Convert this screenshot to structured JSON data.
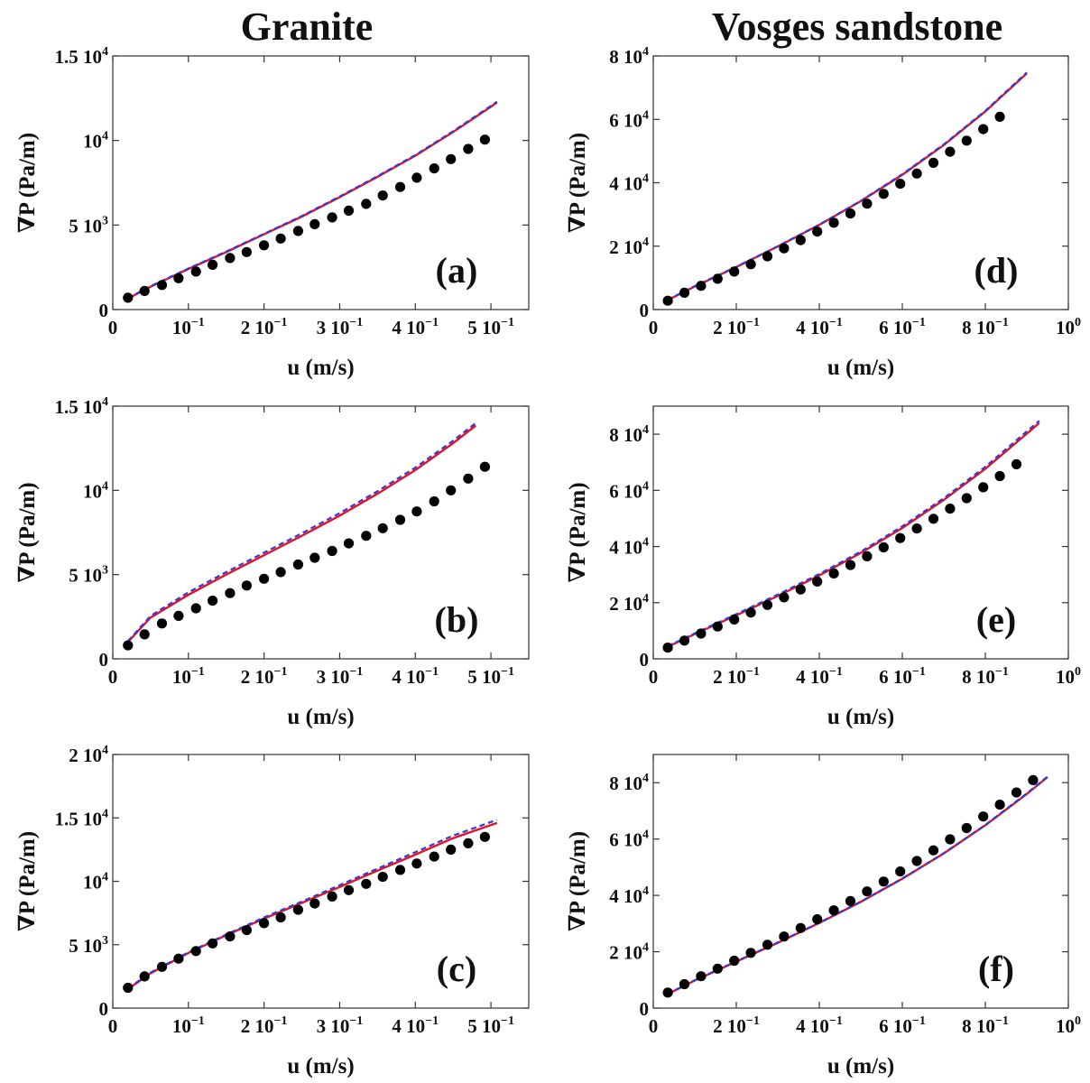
{
  "columns": [
    {
      "title": "Granite"
    },
    {
      "title": "Vosges sandstone"
    }
  ],
  "colors": {
    "solid": "#e8102a",
    "dashed": "#2a3fd6",
    "points": "#000000"
  },
  "chart_data": [
    {
      "type": "scatter",
      "panel_label": "(a)",
      "column": 0,
      "row": 0,
      "xlabel": "u (m/s)",
      "ylabel": "∇P (Pa/m)",
      "xlim": [
        0,
        0.55
      ],
      "ylim": [
        0,
        15000
      ],
      "xticks": [
        {
          "v": 0,
          "m": "0",
          "e": ""
        },
        {
          "v": 0.1,
          "m": "10",
          "e": "−1"
        },
        {
          "v": 0.2,
          "m": "2 10",
          "e": "−1"
        },
        {
          "v": 0.3,
          "m": "3 10",
          "e": "−1"
        },
        {
          "v": 0.4,
          "m": "4 10",
          "e": "−1"
        },
        {
          "v": 0.5,
          "m": "5 10",
          "e": "−1"
        }
      ],
      "yticks": [
        {
          "v": 0,
          "m": "0",
          "e": ""
        },
        {
          "v": 5000,
          "m": "5 10",
          "e": "3"
        },
        {
          "v": 10000,
          "m": "10",
          "e": "4"
        },
        {
          "v": 15000,
          "m": "1.5 10",
          "e": "4"
        }
      ],
      "points": {
        "x": [
          0.02,
          0.042,
          0.065,
          0.087,
          0.11,
          0.132,
          0.155,
          0.177,
          0.2,
          0.222,
          0.245,
          0.267,
          0.29,
          0.312,
          0.335,
          0.357,
          0.38,
          0.402,
          0.425,
          0.447,
          0.47,
          0.492
        ],
        "y": [
          700,
          1100,
          1450,
          1850,
          2250,
          2650,
          3050,
          3400,
          3800,
          4200,
          4650,
          5050,
          5450,
          5850,
          6250,
          6750,
          7250,
          7800,
          8350,
          8900,
          9500,
          10050
        ]
      },
      "solid_line": {
        "x": [
          0.02,
          0.05,
          0.1,
          0.15,
          0.2,
          0.25,
          0.3,
          0.35,
          0.4,
          0.45,
          0.5,
          0.508
        ],
        "y": [
          650,
          1350,
          2400,
          3400,
          4450,
          5500,
          6650,
          7850,
          9100,
          10500,
          12000,
          12250
        ]
      },
      "dashed_line": {
        "x": [
          0.02,
          0.05,
          0.1,
          0.15,
          0.2,
          0.25,
          0.3,
          0.35,
          0.4,
          0.45,
          0.5,
          0.508
        ],
        "y": [
          680,
          1380,
          2430,
          3430,
          4480,
          5530,
          6690,
          7890,
          9140,
          10550,
          12050,
          12300
        ]
      }
    },
    {
      "type": "scatter",
      "panel_label": "(b)",
      "column": 0,
      "row": 1,
      "xlabel": "u (m/s)",
      "ylabel": "∇P (Pa/m)",
      "xlim": [
        0,
        0.55
      ],
      "ylim": [
        0,
        15000
      ],
      "xticks": [
        {
          "v": 0,
          "m": "0",
          "e": ""
        },
        {
          "v": 0.1,
          "m": "10",
          "e": "−1"
        },
        {
          "v": 0.2,
          "m": "2 10",
          "e": "−1"
        },
        {
          "v": 0.3,
          "m": "3 10",
          "e": "−1"
        },
        {
          "v": 0.4,
          "m": "4 10",
          "e": "−1"
        },
        {
          "v": 0.5,
          "m": "5 10",
          "e": "−1"
        }
      ],
      "yticks": [
        {
          "v": 0,
          "m": "0",
          "e": ""
        },
        {
          "v": 5000,
          "m": "5 10",
          "e": "3"
        },
        {
          "v": 10000,
          "m": "10",
          "e": "4"
        },
        {
          "v": 15000,
          "m": "1.5 10",
          "e": "4"
        }
      ],
      "points": {
        "x": [
          0.02,
          0.042,
          0.065,
          0.087,
          0.11,
          0.132,
          0.155,
          0.177,
          0.2,
          0.222,
          0.245,
          0.267,
          0.29,
          0.312,
          0.335,
          0.357,
          0.38,
          0.402,
          0.425,
          0.447,
          0.47,
          0.492
        ],
        "y": [
          800,
          1450,
          2100,
          2550,
          3000,
          3450,
          3900,
          4350,
          4750,
          5150,
          5600,
          6000,
          6400,
          6850,
          7300,
          7750,
          8250,
          8750,
          9350,
          10000,
          10700,
          11400
        ]
      },
      "solid_line": {
        "x": [
          0.02,
          0.05,
          0.1,
          0.15,
          0.2,
          0.25,
          0.3,
          0.35,
          0.4,
          0.45,
          0.48
        ],
        "y": [
          1000,
          2450,
          3800,
          5000,
          6150,
          7300,
          8500,
          9800,
          11200,
          12800,
          13850
        ]
      },
      "dashed_line": {
        "x": [
          0.02,
          0.05,
          0.1,
          0.15,
          0.2,
          0.25,
          0.3,
          0.35,
          0.4,
          0.45,
          0.48
        ],
        "y": [
          1050,
          2550,
          3950,
          5150,
          6300,
          7450,
          8650,
          9950,
          11350,
          12950,
          14000
        ]
      }
    },
    {
      "type": "scatter",
      "panel_label": "(c)",
      "column": 0,
      "row": 2,
      "xlabel": "u (m/s)",
      "ylabel": "∇P (Pa/m)",
      "xlim": [
        0,
        0.55
      ],
      "ylim": [
        0,
        20000
      ],
      "xticks": [
        {
          "v": 0,
          "m": "0",
          "e": ""
        },
        {
          "v": 0.1,
          "m": "10",
          "e": "−1"
        },
        {
          "v": 0.2,
          "m": "2 10",
          "e": "−1"
        },
        {
          "v": 0.3,
          "m": "3 10",
          "e": "−1"
        },
        {
          "v": 0.4,
          "m": "4 10",
          "e": "−1"
        },
        {
          "v": 0.5,
          "m": "5 10",
          "e": "−1"
        }
      ],
      "yticks": [
        {
          "v": 0,
          "m": "0",
          "e": ""
        },
        {
          "v": 5000,
          "m": "5 10",
          "e": "3"
        },
        {
          "v": 10000,
          "m": "10",
          "e": "4"
        },
        {
          "v": 15000,
          "m": "1.5 10",
          "e": "4"
        },
        {
          "v": 20000,
          "m": "2 10",
          "e": "4"
        }
      ],
      "points": {
        "x": [
          0.02,
          0.042,
          0.065,
          0.087,
          0.11,
          0.132,
          0.155,
          0.177,
          0.2,
          0.222,
          0.245,
          0.267,
          0.29,
          0.312,
          0.335,
          0.357,
          0.38,
          0.402,
          0.425,
          0.447,
          0.47,
          0.492
        ],
        "y": [
          1600,
          2500,
          3250,
          3900,
          4500,
          5100,
          5650,
          6150,
          6700,
          7150,
          7750,
          8250,
          8800,
          9300,
          9800,
          10350,
          10900,
          11400,
          11950,
          12500,
          13000,
          13500
        ]
      },
      "solid_line": {
        "x": [
          0.02,
          0.05,
          0.1,
          0.15,
          0.2,
          0.25,
          0.3,
          0.35,
          0.4,
          0.45,
          0.508
        ],
        "y": [
          1500,
          2750,
          4350,
          5750,
          7050,
          8300,
          9550,
          10850,
          12100,
          13400,
          14600
        ]
      },
      "dashed_line": {
        "x": [
          0.02,
          0.05,
          0.1,
          0.15,
          0.2,
          0.25,
          0.3,
          0.35,
          0.4,
          0.45,
          0.508
        ],
        "y": [
          1550,
          2800,
          4400,
          5800,
          7150,
          8400,
          9700,
          11000,
          12300,
          13600,
          14850
        ]
      }
    },
    {
      "type": "scatter",
      "panel_label": "(d)",
      "column": 1,
      "row": 0,
      "xlabel": "u (m/s)",
      "ylabel": "∇P (Pa/m)",
      "xlim": [
        0,
        1.0
      ],
      "ylim": [
        0,
        80000
      ],
      "xticks": [
        {
          "v": 0,
          "m": "0",
          "e": ""
        },
        {
          "v": 0.2,
          "m": "2 10",
          "e": "−1"
        },
        {
          "v": 0.4,
          "m": "4 10",
          "e": "−1"
        },
        {
          "v": 0.6,
          "m": "6 10",
          "e": "−1"
        },
        {
          "v": 0.8,
          "m": "8 10",
          "e": "−1"
        },
        {
          "v": 1.0,
          "m": "10",
          "e": "0"
        }
      ],
      "yticks": [
        {
          "v": 0,
          "m": "0",
          "e": ""
        },
        {
          "v": 20000,
          "m": "2 10",
          "e": "4"
        },
        {
          "v": 40000,
          "m": "4 10",
          "e": "4"
        },
        {
          "v": 60000,
          "m": "6 10",
          "e": "4"
        },
        {
          "v": 80000,
          "m": "8 10",
          "e": "4"
        }
      ],
      "points": {
        "x": [
          0.035,
          0.075,
          0.115,
          0.155,
          0.195,
          0.235,
          0.275,
          0.315,
          0.355,
          0.395,
          0.435,
          0.475,
          0.515,
          0.555,
          0.595,
          0.635,
          0.675,
          0.715,
          0.755,
          0.795,
          0.835
        ],
        "y": [
          2800,
          5300,
          7500,
          9700,
          12000,
          14300,
          16800,
          19300,
          21900,
          24600,
          27400,
          30300,
          33400,
          36500,
          39700,
          42900,
          46300,
          49800,
          53300,
          56900,
          60800
        ]
      },
      "solid_line": {
        "x": [
          0.035,
          0.1,
          0.2,
          0.3,
          0.4,
          0.5,
          0.6,
          0.7,
          0.8,
          0.9
        ],
        "y": [
          3000,
          7300,
          13400,
          19900,
          26700,
          34200,
          42500,
          51900,
          62500,
          74500
        ]
      },
      "dashed_line": {
        "x": [
          0.035,
          0.1,
          0.2,
          0.3,
          0.4,
          0.5,
          0.6,
          0.7,
          0.8,
          0.9
        ],
        "y": [
          3100,
          7400,
          13500,
          20000,
          26800,
          34300,
          42700,
          52100,
          62700,
          74800
        ]
      }
    },
    {
      "type": "scatter",
      "panel_label": "(e)",
      "column": 1,
      "row": 1,
      "xlabel": "u (m/s)",
      "ylabel": "∇P (Pa/m)",
      "xlim": [
        0,
        1.0
      ],
      "ylim": [
        0,
        90000
      ],
      "xticks": [
        {
          "v": 0,
          "m": "0",
          "e": ""
        },
        {
          "v": 0.2,
          "m": "2 10",
          "e": "−1"
        },
        {
          "v": 0.4,
          "m": "4 10",
          "e": "−1"
        },
        {
          "v": 0.6,
          "m": "6 10",
          "e": "−1"
        },
        {
          "v": 0.8,
          "m": "8 10",
          "e": "−1"
        },
        {
          "v": 1.0,
          "m": "10",
          "e": "0"
        }
      ],
      "yticks": [
        {
          "v": 0,
          "m": "0",
          "e": ""
        },
        {
          "v": 20000,
          "m": "2 10",
          "e": "4"
        },
        {
          "v": 40000,
          "m": "4 10",
          "e": "4"
        },
        {
          "v": 60000,
          "m": "6 10",
          "e": "4"
        },
        {
          "v": 80000,
          "m": "8 10",
          "e": "4"
        }
      ],
      "points": {
        "x": [
          0.035,
          0.075,
          0.115,
          0.155,
          0.195,
          0.235,
          0.275,
          0.315,
          0.355,
          0.395,
          0.435,
          0.475,
          0.515,
          0.555,
          0.595,
          0.635,
          0.675,
          0.715,
          0.755,
          0.795,
          0.835,
          0.875
        ],
        "y": [
          4000,
          6500,
          9000,
          11500,
          14000,
          16500,
          19200,
          21900,
          24700,
          27500,
          30400,
          33400,
          36500,
          39700,
          43000,
          46400,
          49900,
          53500,
          57200,
          61100,
          65100,
          69300
        ]
      },
      "solid_line": {
        "x": [
          0.035,
          0.1,
          0.2,
          0.3,
          0.4,
          0.5,
          0.6,
          0.7,
          0.8,
          0.9,
          0.93
        ],
        "y": [
          4300,
          8800,
          15500,
          22400,
          29700,
          37700,
          46600,
          56600,
          67700,
          80200,
          84000
        ]
      },
      "dashed_line": {
        "x": [
          0.035,
          0.1,
          0.2,
          0.3,
          0.4,
          0.5,
          0.6,
          0.7,
          0.8,
          0.9,
          0.93
        ],
        "y": [
          4500,
          9100,
          15900,
          22900,
          30200,
          38200,
          47200,
          57200,
          68400,
          81000,
          84800
        ]
      }
    },
    {
      "type": "scatter",
      "panel_label": "(f)",
      "column": 1,
      "row": 2,
      "xlabel": "u (m/s)",
      "ylabel": "∇P (Pa/m)",
      "xlim": [
        0,
        1.0
      ],
      "ylim": [
        0,
        90000
      ],
      "xticks": [
        {
          "v": 0,
          "m": "0",
          "e": ""
        },
        {
          "v": 0.2,
          "m": "2 10",
          "e": "−1"
        },
        {
          "v": 0.4,
          "m": "4 10",
          "e": "−1"
        },
        {
          "v": 0.6,
          "m": "6 10",
          "e": "−1"
        },
        {
          "v": 0.8,
          "m": "8 10",
          "e": "−1"
        },
        {
          "v": 1.0,
          "m": "10",
          "e": "0"
        }
      ],
      "yticks": [
        {
          "v": 0,
          "m": "0",
          "e": ""
        },
        {
          "v": 20000,
          "m": "2 10",
          "e": "4"
        },
        {
          "v": 40000,
          "m": "4 10",
          "e": "4"
        },
        {
          "v": 60000,
          "m": "6 10",
          "e": "4"
        },
        {
          "v": 80000,
          "m": "8 10",
          "e": "4"
        }
      ],
      "points": {
        "x": [
          0.035,
          0.075,
          0.115,
          0.155,
          0.195,
          0.235,
          0.275,
          0.315,
          0.355,
          0.395,
          0.435,
          0.475,
          0.515,
          0.555,
          0.595,
          0.635,
          0.675,
          0.715,
          0.755,
          0.795,
          0.835,
          0.875,
          0.915
        ],
        "y": [
          5500,
          8500,
          11300,
          14000,
          16800,
          19600,
          22500,
          25400,
          28400,
          31500,
          34700,
          38000,
          41400,
          44900,
          48500,
          52200,
          56000,
          59900,
          63900,
          68000,
          72200,
          76500,
          80900
        ]
      },
      "solid_line": {
        "x": [
          0.035,
          0.1,
          0.2,
          0.3,
          0.4,
          0.5,
          0.6,
          0.7,
          0.8,
          0.9,
          0.95
        ],
        "y": [
          5000,
          9800,
          16500,
          23200,
          30200,
          37700,
          45900,
          54900,
          64900,
          76000,
          82000
        ]
      },
      "dashed_line": {
        "x": [
          0.035,
          0.1,
          0.2,
          0.3,
          0.4,
          0.5,
          0.6,
          0.7,
          0.8,
          0.9,
          0.95
        ],
        "y": [
          5100,
          9900,
          16600,
          23300,
          30300,
          37800,
          46000,
          55000,
          65000,
          76200,
          82200
        ]
      }
    }
  ]
}
